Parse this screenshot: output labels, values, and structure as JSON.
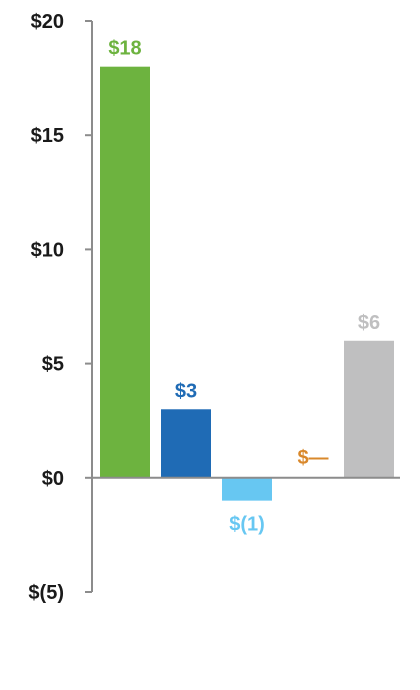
{
  "chart_data": {
    "type": "bar",
    "title": "",
    "xlabel": "",
    "ylabel": "",
    "categories": [
      "",
      "",
      "",
      "",
      ""
    ],
    "values": [
      18,
      3,
      -1,
      0,
      6
    ],
    "data_labels": [
      "$18",
      "$3",
      "$(1)",
      "$—",
      "$6"
    ],
    "bar_colors": [
      "#6db33f",
      "#1f6bb5",
      "#67c7f2",
      "#d9882b",
      "#bfbfc0"
    ],
    "ylim": [
      -5,
      20
    ],
    "yticks": [
      20,
      15,
      10,
      5,
      0,
      -5
    ],
    "ytick_labels": [
      "$20",
      "$15",
      "$10",
      "$5",
      "$0",
      "$(5)"
    ],
    "grid": false,
    "legend": "none"
  },
  "colors": {
    "axis": "#8c8c8c",
    "tick_text": "#1a1a1a"
  }
}
